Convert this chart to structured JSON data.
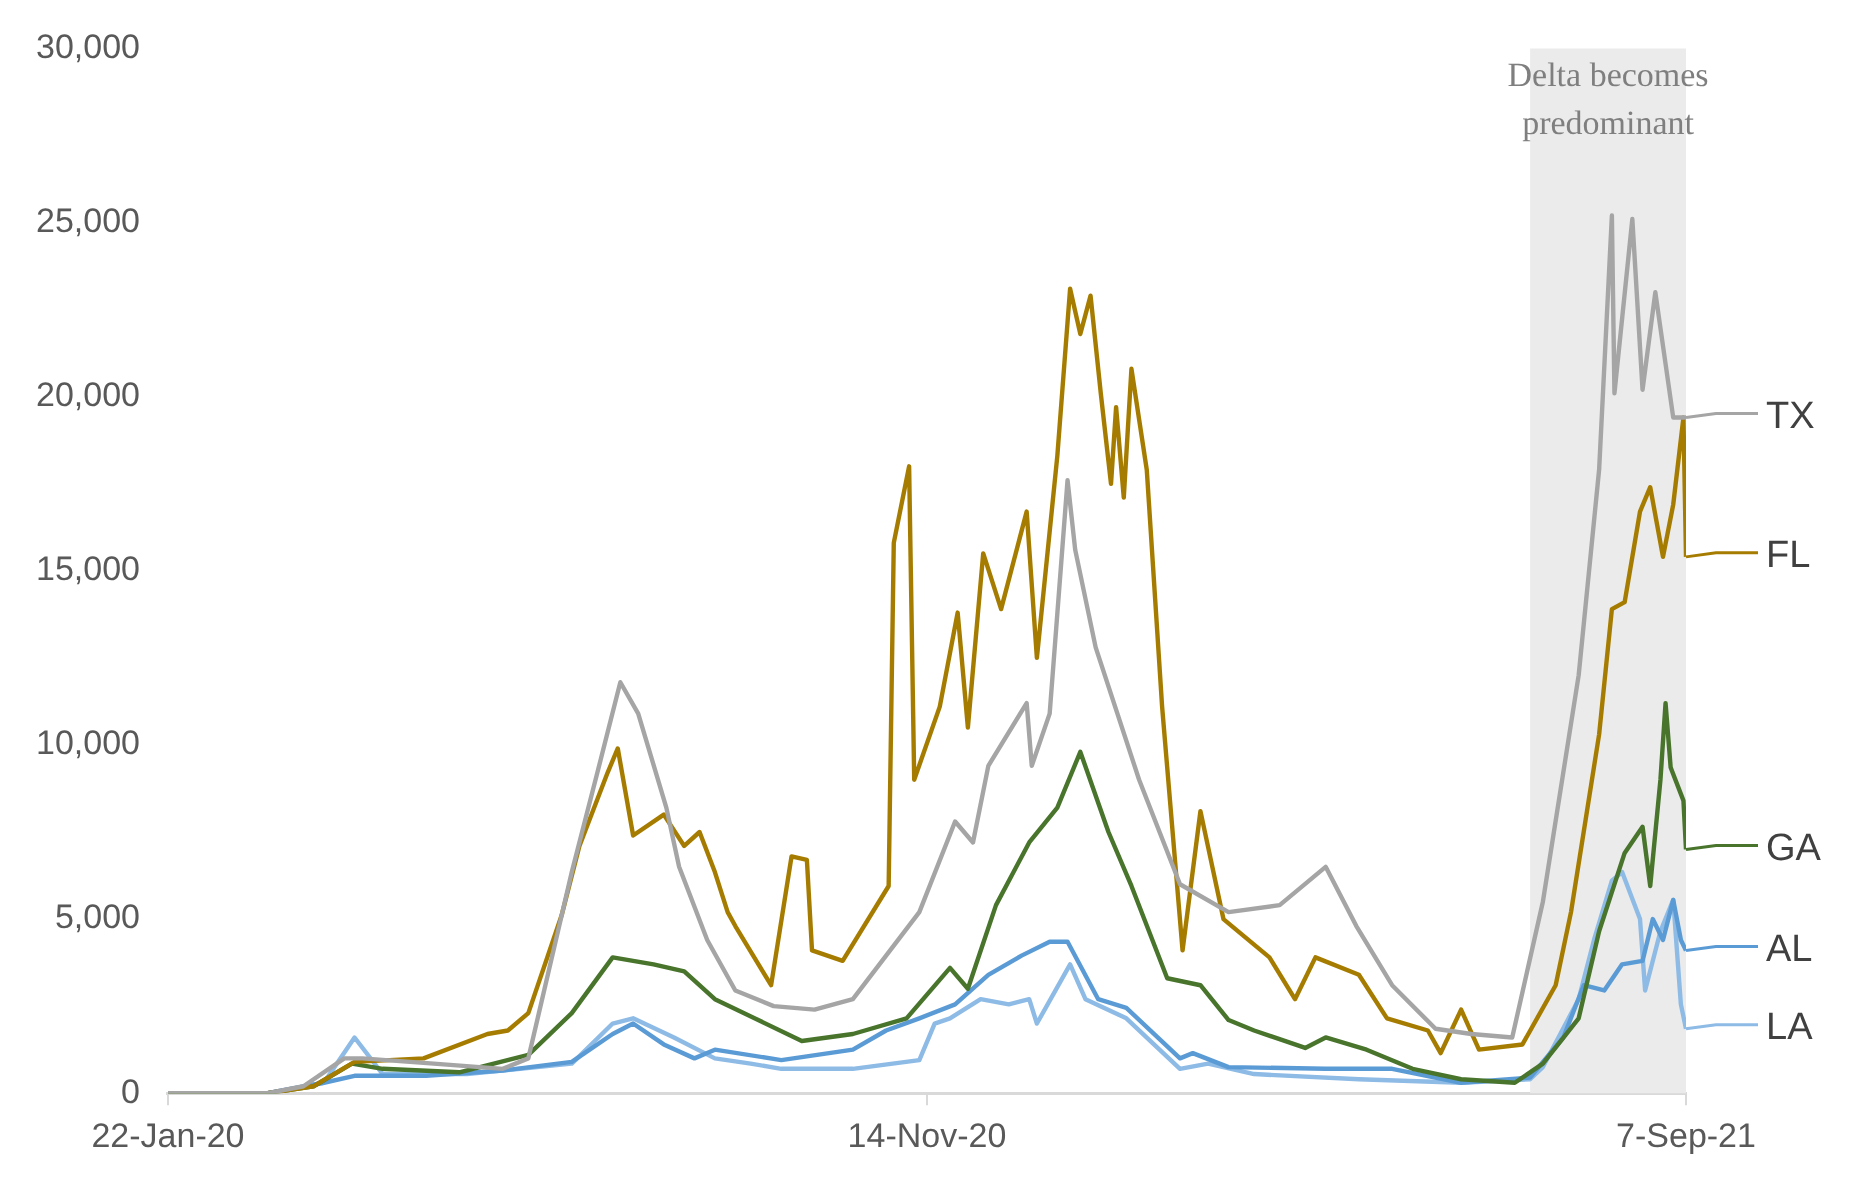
{
  "chart_data": {
    "type": "line",
    "xlim": [
      "2020-01-22",
      "2021-09-07"
    ],
    "xticks": [
      {
        "value": "2020-01-22",
        "label": "22-Jan-20"
      },
      {
        "value": "2020-11-14",
        "label": "14-Nov-20"
      },
      {
        "value": "2021-09-07",
        "label": "7-Sep-21"
      }
    ],
    "ylim": [
      0,
      30000
    ],
    "yticks": [
      0,
      {
        "value": 5000,
        "label": "5,000"
      },
      {
        "value": 10000,
        "label": "10,000"
      },
      {
        "value": 15000,
        "label": "15,000"
      },
      {
        "value": 20000,
        "label": "20,000"
      },
      {
        "value": 25000,
        "label": "25,000"
      },
      {
        "value": 30000,
        "label": "30,000"
      }
    ],
    "grid": false,
    "legend": "right",
    "marker": "none",
    "line_style": "solid",
    "bands": [
      {
        "axis": "x",
        "from": "2021-07-08",
        "to": "2021-09-07",
        "label": "Delta becomes predominant",
        "color": "#ebebeb"
      }
    ],
    "series": [
      {
        "name": "TX",
        "color": "#a5a5a5",
        "x": [
          "2020-01-22",
          "2020-03-01",
          "2020-03-15",
          "2020-03-31",
          "2020-04-07",
          "2020-05-05",
          "2020-06-01",
          "2020-06-11",
          "2020-06-28",
          "2020-07-08",
          "2020-07-17",
          "2020-07-24",
          "2020-08-04",
          "2020-08-09",
          "2020-08-20",
          "2020-08-31",
          "2020-09-15",
          "2020-10-01",
          "2020-10-16",
          "2020-11-11",
          "2020-11-25",
          "2020-12-02",
          "2020-12-08",
          "2020-12-23",
          "2020-12-25",
          "2021-01-01",
          "2021-01-08",
          "2021-01-11",
          "2021-01-19",
          "2021-02-05",
          "2021-02-21",
          "2021-03-12",
          "2021-04-01",
          "2021-04-19",
          "2021-05-01",
          "2021-05-15",
          "2021-06-01",
          "2021-06-15",
          "2021-07-01",
          "2021-07-13",
          "2021-07-27",
          "2021-08-04",
          "2021-08-09",
          "2021-08-10",
          "2021-08-17",
          "2021-08-21",
          "2021-08-26",
          "2021-09-02",
          "2021-09-07"
        ],
        "values": [
          0,
          0,
          200,
          1000,
          1000,
          850,
          700,
          1000,
          6350,
          9200,
          11800,
          10900,
          8200,
          6500,
          4400,
          2950,
          2500,
          2400,
          2700,
          5200,
          7800,
          7200,
          9400,
          11200,
          9400,
          10900,
          17600,
          15600,
          12800,
          9000,
          6000,
          5200,
          5400,
          6500,
          4800,
          3100,
          1850,
          1700,
          1600,
          5500,
          12000,
          17900,
          25200,
          20100,
          25100,
          20200,
          23000,
          19400,
          19400
        ]
      },
      {
        "name": "FL",
        "color": "#a67c00",
        "x": [
          "2020-01-22",
          "2020-03-01",
          "2020-03-19",
          "2020-04-04",
          "2020-05-01",
          "2020-05-26",
          "2020-06-03",
          "2020-06-11",
          "2020-06-24",
          "2020-07-01",
          "2020-07-12",
          "2020-07-16",
          "2020-07-22",
          "2020-08-03",
          "2020-08-11",
          "2020-08-17",
          "2020-08-23",
          "2020-08-28",
          "2020-08-31",
          "2020-09-14",
          "2020-09-22",
          "2020-09-28",
          "2020-09-30",
          "2020-10-12",
          "2020-10-30",
          "2020-11-01",
          "2020-11-07",
          "2020-11-09",
          "2020-11-19",
          "2020-11-26",
          "2020-11-30",
          "2020-12-06",
          "2020-12-13",
          "2020-12-23",
          "2020-12-27",
          "2021-01-04",
          "2021-01-09",
          "2021-01-13",
          "2021-01-17",
          "2021-01-21",
          "2021-01-25",
          "2021-01-27",
          "2021-01-30",
          "2021-02-02",
          "2021-02-08",
          "2021-02-14",
          "2021-02-22",
          "2021-03-01",
          "2021-03-10",
          "2021-03-28",
          "2021-04-07",
          "2021-04-15",
          "2021-05-02",
          "2021-05-13",
          "2021-05-29",
          "2021-06-03",
          "2021-06-11",
          "2021-06-18",
          "2021-07-05",
          "2021-07-18",
          "2021-07-24",
          "2021-08-04",
          "2021-08-09",
          "2021-08-14",
          "2021-08-20",
          "2021-08-24",
          "2021-08-29",
          "2021-09-02",
          "2021-09-06",
          "2021-09-07"
        ],
        "values": [
          0,
          0,
          200,
          900,
          1000,
          1700,
          1800,
          2300,
          5100,
          7100,
          9200,
          9900,
          7400,
          8000,
          7100,
          7500,
          6350,
          5200,
          4800,
          3100,
          6800,
          6700,
          4100,
          3800,
          5950,
          15800,
          18000,
          9000,
          11100,
          13800,
          10500,
          15500,
          13900,
          16700,
          12500,
          18300,
          23100,
          21800,
          22900,
          20100,
          17500,
          19700,
          17100,
          20800,
          17900,
          11100,
          4100,
          8100,
          5000,
          3900,
          2700,
          3900,
          3400,
          2150,
          1800,
          1150,
          2400,
          1250,
          1400,
          3100,
          5200,
          10300,
          13900,
          14100,
          16700,
          17400,
          15400,
          16900,
          19400,
          15400
        ]
      },
      {
        "name": "GA",
        "color": "#48742c",
        "x": [
          "2020-01-22",
          "2020-03-01",
          "2020-03-19",
          "2020-04-03",
          "2020-04-15",
          "2020-05-15",
          "2020-06-11",
          "2020-06-28",
          "2020-07-14",
          "2020-07-30",
          "2020-08-11",
          "2020-08-23",
          "2020-09-26",
          "2020-10-16",
          "2020-11-06",
          "2020-11-23",
          "2020-11-30",
          "2020-12-11",
          "2020-12-24",
          "2021-01-04",
          "2021-01-13",
          "2021-01-24",
          "2021-02-02",
          "2021-02-16",
          "2021-03-01",
          "2021-03-12",
          "2021-03-22",
          "2021-04-11",
          "2021-04-19",
          "2021-05-05",
          "2021-05-23",
          "2021-06-11",
          "2021-07-02",
          "2021-07-13",
          "2021-07-27",
          "2021-08-04",
          "2021-08-14",
          "2021-08-21",
          "2021-08-24",
          "2021-08-28",
          "2021-08-30",
          "2021-09-01",
          "2021-09-06",
          "2021-09-07"
        ],
        "values": [
          0,
          0,
          200,
          850,
          700,
          600,
          1100,
          2300,
          3900,
          3700,
          3500,
          2700,
          1500,
          1700,
          2150,
          3600,
          3000,
          5400,
          7200,
          8200,
          9800,
          7500,
          5950,
          3300,
          3100,
          2100,
          1800,
          1300,
          1600,
          1250,
          700,
          400,
          300,
          850,
          2150,
          4650,
          6900,
          7650,
          5950,
          9000,
          11200,
          9350,
          8400,
          7000
        ]
      },
      {
        "name": "AL",
        "color": "#5b9bd5",
        "x": [
          "2020-01-22",
          "2020-03-01",
          "2020-03-23",
          "2020-04-04",
          "2020-05-02",
          "2020-06-01",
          "2020-06-28",
          "2020-07-14",
          "2020-07-22",
          "2020-08-03",
          "2020-08-15",
          "2020-08-23",
          "2020-09-18",
          "2020-10-16",
          "2020-10-29",
          "2020-11-11",
          "2020-11-25",
          "2020-12-08",
          "2020-12-21",
          "2021-01-01",
          "2021-01-08",
          "2021-01-20",
          "2021-01-31",
          "2021-02-21",
          "2021-02-26",
          "2021-03-12",
          "2021-04-19",
          "2021-05-15",
          "2021-06-11",
          "2021-07-08",
          "2021-07-21",
          "2021-07-29",
          "2021-08-06",
          "2021-08-13",
          "2021-08-21",
          "2021-08-25",
          "2021-08-29",
          "2021-09-02",
          "2021-09-05",
          "2021-09-07"
        ],
        "values": [
          0,
          0,
          300,
          500,
          500,
          650,
          900,
          1700,
          2000,
          1400,
          1000,
          1250,
          950,
          1250,
          1800,
          2150,
          2550,
          3400,
          3950,
          4350,
          4350,
          2700,
          2450,
          1000,
          1150,
          750,
          700,
          700,
          300,
          450,
          1600,
          3100,
          2950,
          3700,
          3800,
          5000,
          4400,
          5550,
          4400,
          4100
        ]
      },
      {
        "name": "LA",
        "color": "#8dbbe6",
        "x": [
          "2020-01-22",
          "2020-03-01",
          "2020-03-23",
          "2020-04-04",
          "2020-04-15",
          "2020-05-18",
          "2020-06-28",
          "2020-07-14",
          "2020-07-22",
          "2020-08-07",
          "2020-08-23",
          "2020-09-06",
          "2020-09-18",
          "2020-10-16",
          "2020-11-11",
          "2020-11-17",
          "2020-11-23",
          "2020-12-05",
          "2020-12-16",
          "2020-12-24",
          "2020-12-27",
          "2021-01-09",
          "2021-01-15",
          "2021-01-31",
          "2021-02-21",
          "2021-03-04",
          "2021-03-22",
          "2021-05-02",
          "2021-06-11",
          "2021-07-08",
          "2021-07-13",
          "2021-07-27",
          "2021-08-02",
          "2021-08-09",
          "2021-08-13",
          "2021-08-20",
          "2021-08-22",
          "2021-08-28",
          "2021-09-02",
          "2021-09-05",
          "2021-09-07"
        ],
        "values": [
          0,
          0,
          300,
          1600,
          550,
          550,
          850,
          2000,
          2150,
          1600,
          1000,
          850,
          700,
          700,
          950,
          2000,
          2150,
          2700,
          2550,
          2700,
          2000,
          3700,
          2700,
          2150,
          700,
          850,
          550,
          400,
          300,
          400,
          750,
          2700,
          4400,
          6100,
          6350,
          5000,
          2950,
          4650,
          5550,
          2550,
          1850
        ]
      }
    ]
  }
}
